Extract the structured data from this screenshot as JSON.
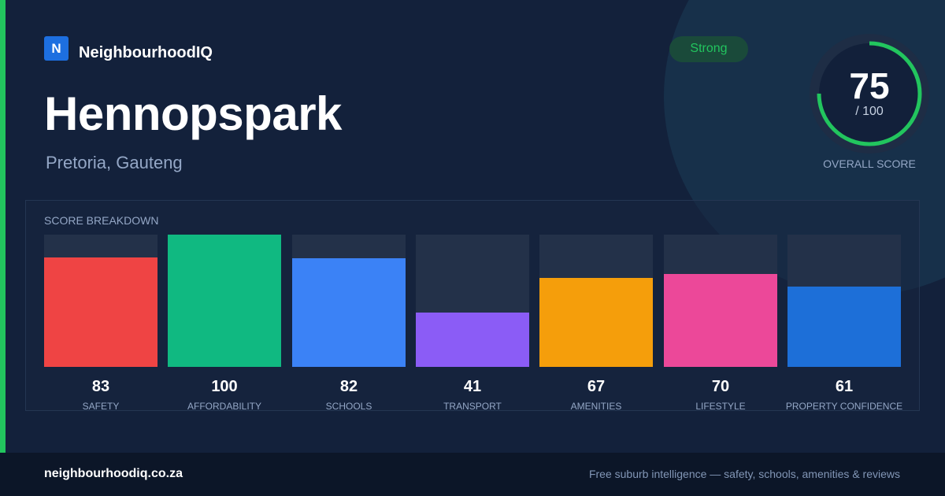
{
  "brand": {
    "logo_letter": "N",
    "name": "NeighbourhoodIQ"
  },
  "suburb": {
    "name": "Hennopspark",
    "location": "Pretoria, Gauteng"
  },
  "badge": {
    "label": "Strong",
    "color": "#22c55e"
  },
  "overall": {
    "score": "75",
    "max_label": "/ 100",
    "max": 100,
    "label": "OVERALL SCORE",
    "ring_color": "#22c55e"
  },
  "breakdown": {
    "title": "SCORE BREAKDOWN",
    "items": [
      {
        "label": "SAFETY",
        "value": "83",
        "color": "#ef4444"
      },
      {
        "label": "AFFORDABILITY",
        "value": "100",
        "color": "#10b981"
      },
      {
        "label": "SCHOOLS",
        "value": "82",
        "color": "#3b82f6"
      },
      {
        "label": "TRANSPORT",
        "value": "41",
        "color": "#8b5cf6"
      },
      {
        "label": "AMENITIES",
        "value": "67",
        "color": "#f59e0b"
      },
      {
        "label": "LIFESTYLE",
        "value": "70",
        "color": "#ec4899"
      },
      {
        "label": "PROPERTY CONFIDENCE",
        "value": "61",
        "color": "#1d6fd8"
      }
    ]
  },
  "footer": {
    "url": "neighbourhoodiq.co.za",
    "tagline": "Free suburb intelligence — safety, schools, amenities & reviews"
  }
}
